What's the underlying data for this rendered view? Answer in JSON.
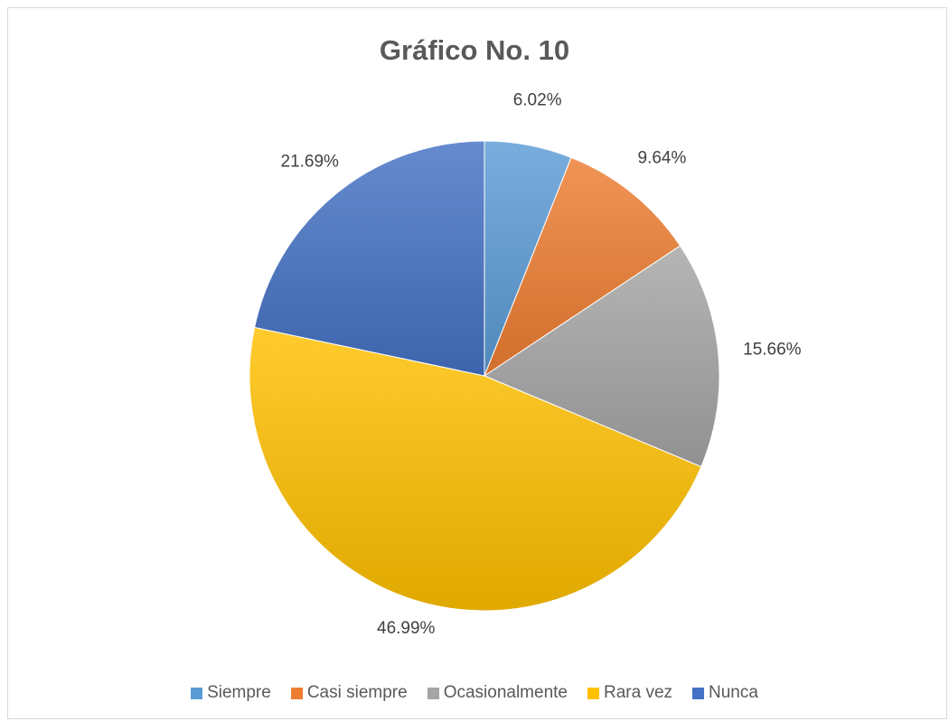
{
  "chart_data": {
    "type": "pie",
    "title": "Gráfico No. 10",
    "categories": [
      "Siempre",
      "Casi siempre",
      "Ocasionalmente",
      "Rara vez",
      "Nunca"
    ],
    "values": [
      6.02,
      9.64,
      15.66,
      46.99,
      21.69
    ],
    "data_labels": [
      "6.02%",
      "9.64%",
      "15.66%",
      "46.99%",
      "21.69%"
    ],
    "colors": [
      "#5b9bd5",
      "#ed7d31",
      "#a5a5a5",
      "#ffc000",
      "#4472c4"
    ],
    "legend_position": "bottom"
  }
}
